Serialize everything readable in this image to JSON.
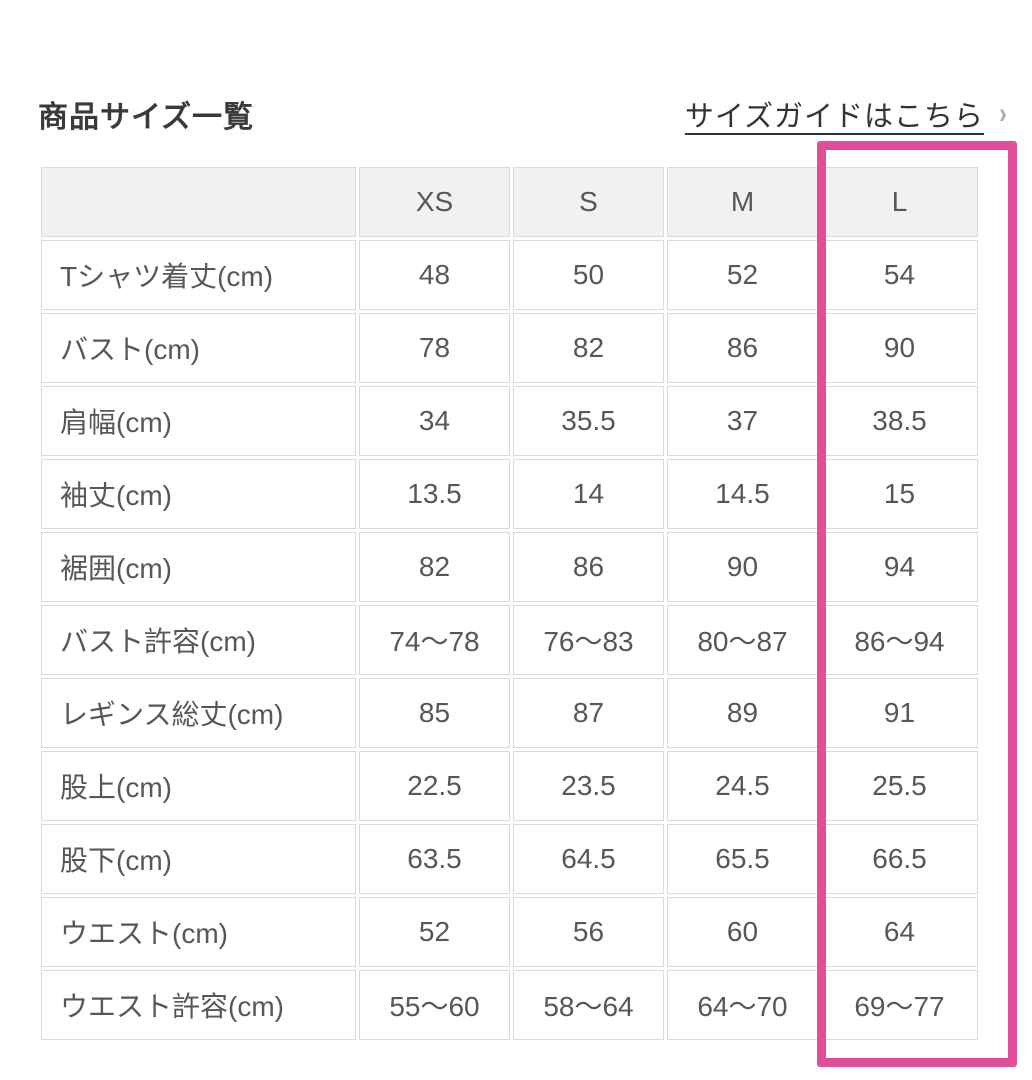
{
  "header": {
    "title": "商品サイズ一覧",
    "size_guide_link": "サイズガイドはこちら",
    "chevron_icon": "›"
  },
  "table": {
    "columns": [
      "",
      "XS",
      "S",
      "M",
      "L"
    ],
    "highlighted_column": "L",
    "rows": [
      {
        "label": "Tシャツ着丈(cm)",
        "values": [
          "48",
          "50",
          "52",
          "54"
        ]
      },
      {
        "label": "バスト(cm)",
        "values": [
          "78",
          "82",
          "86",
          "90"
        ]
      },
      {
        "label": "肩幅(cm)",
        "values": [
          "34",
          "35.5",
          "37",
          "38.5"
        ]
      },
      {
        "label": "袖丈(cm)",
        "values": [
          "13.5",
          "14",
          "14.5",
          "15"
        ]
      },
      {
        "label": "裾囲(cm)",
        "values": [
          "82",
          "86",
          "90",
          "94"
        ]
      },
      {
        "label": "バスト許容(cm)",
        "values": [
          "74〜78",
          "76〜83",
          "80〜87",
          "86〜94"
        ]
      },
      {
        "label": "レギンス総丈(cm)",
        "values": [
          "85",
          "87",
          "89",
          "91"
        ]
      },
      {
        "label": "股上(cm)",
        "values": [
          "22.5",
          "23.5",
          "24.5",
          "25.5"
        ]
      },
      {
        "label": "股下(cm)",
        "values": [
          "63.5",
          "64.5",
          "65.5",
          "66.5"
        ]
      },
      {
        "label": "ウエスト(cm)",
        "values": [
          "52",
          "56",
          "60",
          "64"
        ]
      },
      {
        "label": "ウエスト許容(cm)",
        "values": [
          "55〜60",
          "58〜64",
          "64〜70",
          "69〜77"
        ]
      }
    ]
  },
  "colors": {
    "highlight_pink": "#e04e99",
    "header_cell_bg": "#f1f1f0",
    "cell_border": "#dadada",
    "cell_text": "#575757",
    "title_text": "#3a3a3a",
    "chevron_gray": "#a9a9a9"
  }
}
